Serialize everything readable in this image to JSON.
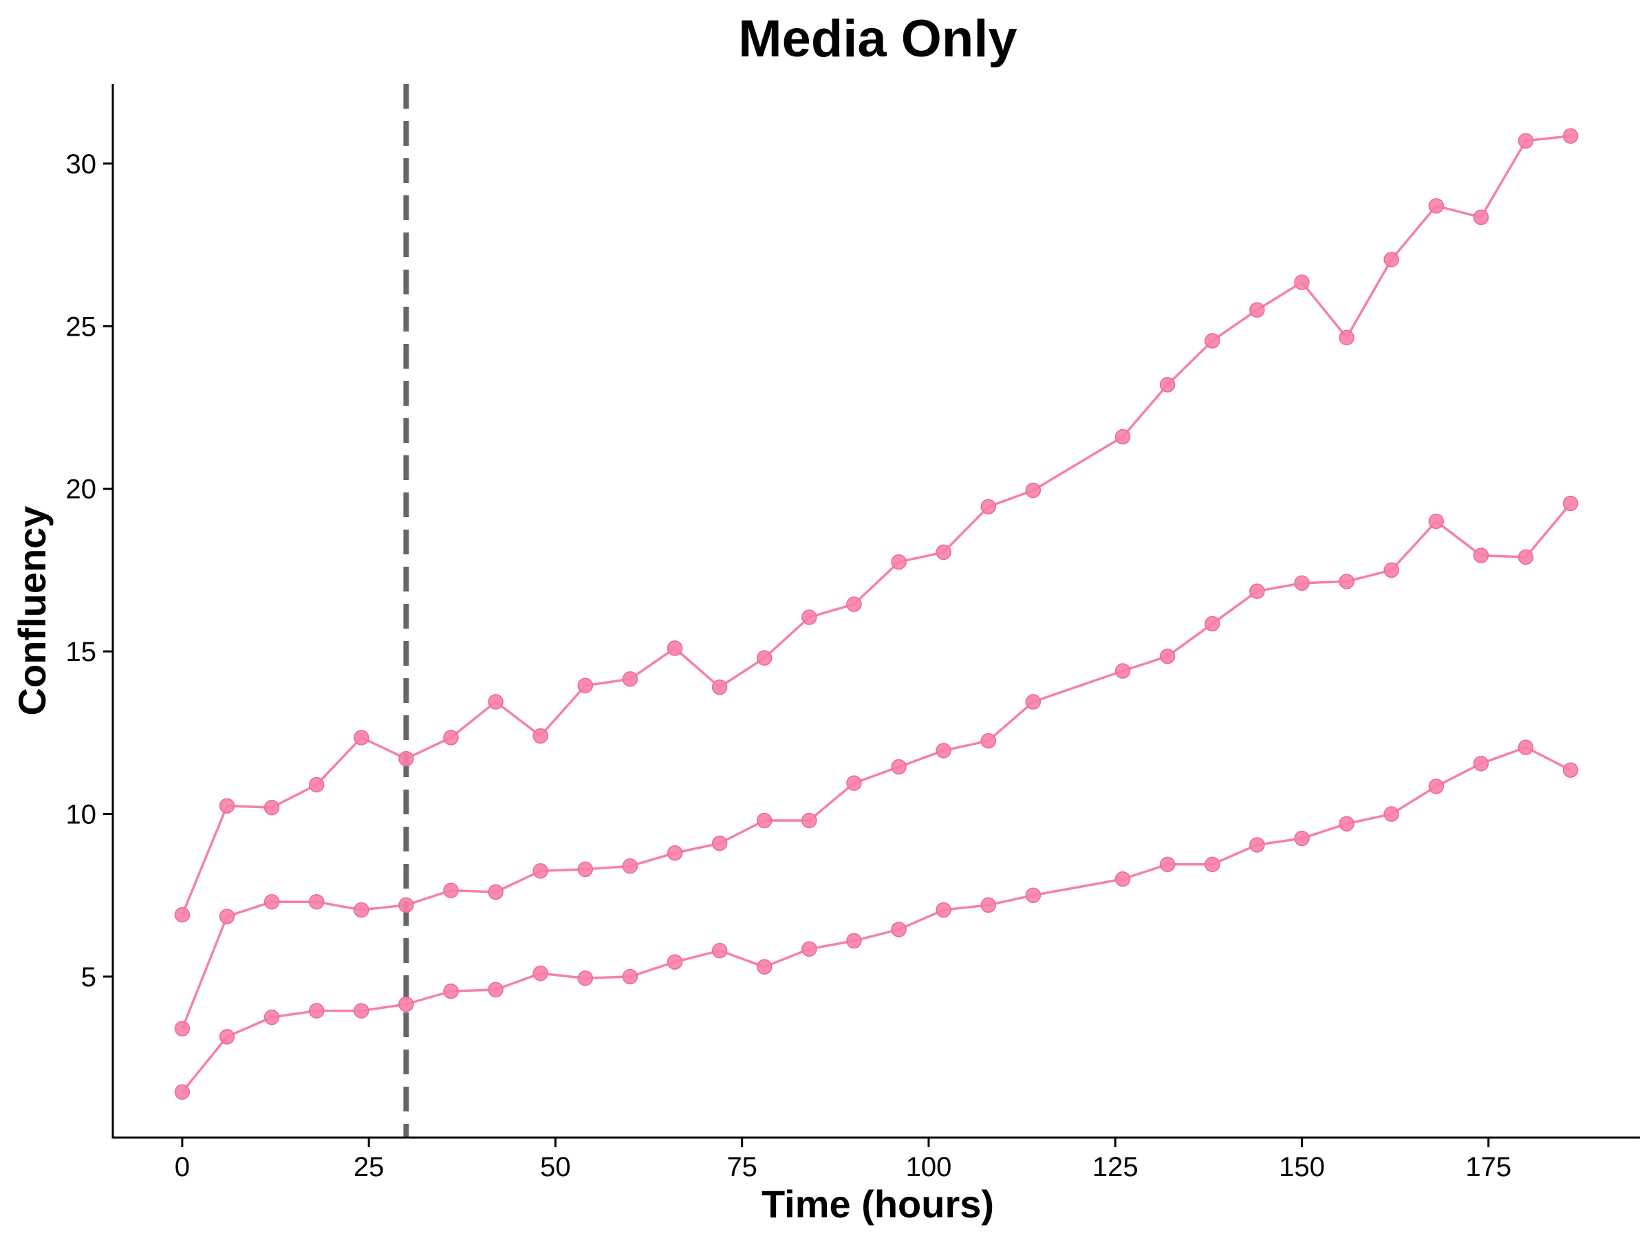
{
  "chart_data": {
    "type": "line",
    "title": "Media Only",
    "xlabel": "Time (hours)",
    "ylabel": "Confluency",
    "xlim": [
      -9.3,
      195.3
    ],
    "ylim": [
      0.05,
      32.45
    ],
    "x_ticks": [
      0,
      25,
      50,
      75,
      100,
      125,
      150,
      175
    ],
    "y_ticks": [
      5,
      10,
      15,
      20,
      25,
      30
    ],
    "grid": false,
    "legend": "none",
    "vline": {
      "x": 30,
      "style": "dashed",
      "color": "#666666"
    },
    "series_color": "#F77FAB",
    "x": [
      0,
      6,
      12,
      18,
      24,
      30,
      36,
      42,
      48,
      54,
      60,
      66,
      72,
      78,
      84,
      90,
      96,
      102,
      108,
      114,
      126,
      132,
      138,
      144,
      150,
      156,
      162,
      168,
      174,
      180,
      186
    ],
    "series": [
      {
        "values": [
          6.9,
          10.25,
          10.2,
          10.9,
          12.35,
          11.7,
          12.35,
          13.45,
          12.4,
          13.95,
          14.15,
          15.1,
          13.9,
          14.8,
          16.05,
          16.45,
          17.75,
          18.05,
          19.45,
          19.95,
          21.6,
          23.2,
          24.55,
          25.5,
          26.35,
          24.65,
          27.05,
          28.7,
          28.35,
          30.7,
          30.85
        ]
      },
      {
        "values": [
          3.4,
          6.85,
          7.3,
          7.3,
          7.05,
          7.2,
          7.65,
          7.6,
          8.25,
          8.3,
          8.4,
          8.8,
          9.1,
          9.8,
          9.8,
          10.95,
          11.45,
          11.95,
          12.25,
          13.45,
          14.4,
          14.85,
          15.85,
          16.85,
          17.1,
          17.15,
          17.5,
          19.0,
          17.95,
          17.9,
          19.55
        ]
      },
      {
        "values": [
          1.45,
          3.15,
          3.75,
          3.95,
          3.95,
          4.15,
          4.55,
          4.6,
          5.1,
          4.95,
          5.0,
          5.45,
          5.8,
          5.3,
          5.85,
          6.1,
          6.45,
          7.05,
          7.2,
          7.5,
          8.0,
          8.45,
          8.45,
          9.05,
          9.25,
          9.7,
          10.0,
          10.85,
          11.55,
          12.05,
          11.35
        ]
      }
    ]
  }
}
